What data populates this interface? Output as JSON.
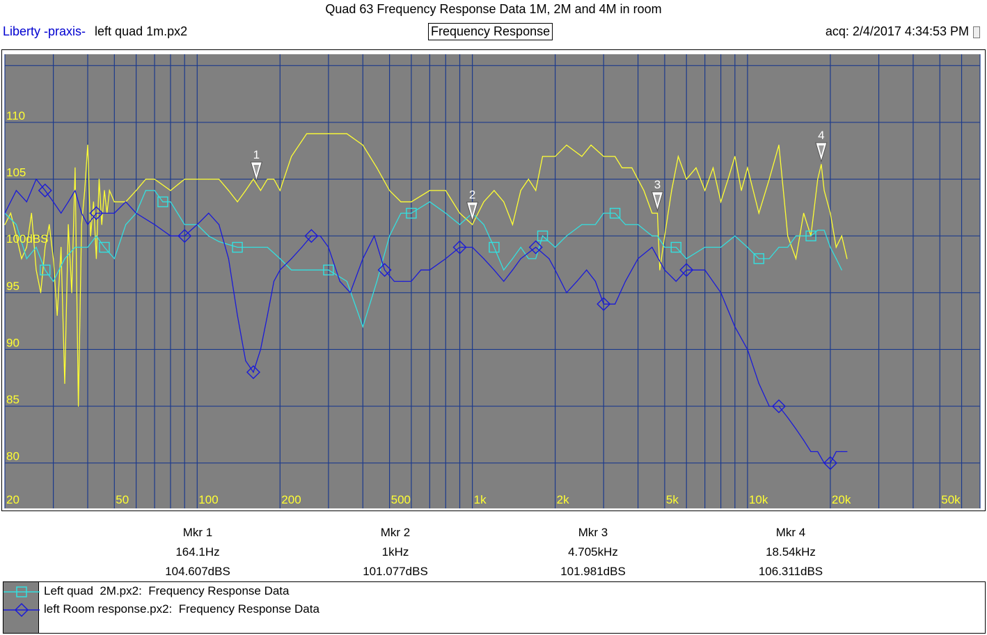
{
  "title": "Quad 63 Frequency Response Data 1M, 2M and 4M in room",
  "header": {
    "brand": "Liberty -praxis-",
    "file": "left quad  1m.px2",
    "mode": "Frequency Response",
    "acq": "acq: 2/4/2017 4:34:53 PM"
  },
  "colors": {
    "plot_bg": "#808080",
    "grid": "#1c3a8c",
    "series_1m": "#ffff33",
    "series_2m": "#33e0e0",
    "series_room": "#1a1ad8",
    "axis_text": "#ffff33"
  },
  "chart_data": {
    "type": "line",
    "title": "Quad 63 Frequency Response Data 1M, 2M and 4M in room",
    "xscale": "log",
    "xlim": [
      20,
      70000
    ],
    "ylim": [
      76,
      116
    ],
    "x_tick_labels": [
      {
        "value": 20,
        "label": "20"
      },
      {
        "value": 50,
        "label": "50"
      },
      {
        "value": 100,
        "label": "100"
      },
      {
        "value": 200,
        "label": "200"
      },
      {
        "value": 500,
        "label": "500"
      },
      {
        "value": 1000,
        "label": "1k"
      },
      {
        "value": 2000,
        "label": "2k"
      },
      {
        "value": 5000,
        "label": "5k"
      },
      {
        "value": 10000,
        "label": "10k"
      },
      {
        "value": 20000,
        "label": "20k"
      },
      {
        "value": 50000,
        "label": "50k"
      }
    ],
    "y_tick_labels": [
      {
        "value": 110,
        "label": "110"
      },
      {
        "value": 105,
        "label": "105"
      },
      {
        "value": 100,
        "label": "100dBS"
      },
      {
        "value": 95,
        "label": "95"
      },
      {
        "value": 90,
        "label": "90"
      },
      {
        "value": 85,
        "label": "85"
      },
      {
        "value": 80,
        "label": "80"
      }
    ],
    "grid": true,
    "series": [
      {
        "name": "left quad  1m.px2",
        "color": "#ffff33",
        "marker": "none",
        "points": [
          [
            20,
            101
          ],
          [
            21,
            102
          ],
          [
            22,
            100
          ],
          [
            23,
            98
          ],
          [
            24,
            99
          ],
          [
            25,
            102
          ],
          [
            26,
            97
          ],
          [
            27,
            95
          ],
          [
            28,
            99
          ],
          [
            29,
            101
          ],
          [
            30,
            98
          ],
          [
            31,
            93
          ],
          [
            32,
            99
          ],
          [
            33,
            87
          ],
          [
            34,
            101
          ],
          [
            35,
            95
          ],
          [
            36,
            106
          ],
          [
            37,
            85
          ],
          [
            38,
            101
          ],
          [
            39,
            104
          ],
          [
            40,
            108
          ],
          [
            41,
            100
          ],
          [
            42,
            103
          ],
          [
            43,
            98
          ],
          [
            44,
            105
          ],
          [
            45,
            101
          ],
          [
            46,
            104
          ],
          [
            47,
            102
          ],
          [
            48,
            104
          ],
          [
            50,
            103
          ],
          [
            55,
            103
          ],
          [
            60,
            104
          ],
          [
            65,
            105
          ],
          [
            70,
            105
          ],
          [
            80,
            104
          ],
          [
            90,
            105
          ],
          [
            100,
            105
          ],
          [
            110,
            105
          ],
          [
            120,
            105
          ],
          [
            130,
            104
          ],
          [
            140,
            103
          ],
          [
            150,
            104
          ],
          [
            160,
            105
          ],
          [
            170,
            104
          ],
          [
            180,
            105
          ],
          [
            190,
            105
          ],
          [
            200,
            104
          ],
          [
            220,
            107
          ],
          [
            250,
            109
          ],
          [
            300,
            109
          ],
          [
            350,
            109
          ],
          [
            400,
            108
          ],
          [
            450,
            106
          ],
          [
            500,
            104
          ],
          [
            550,
            103
          ],
          [
            600,
            103
          ],
          [
            700,
            104
          ],
          [
            800,
            104
          ],
          [
            900,
            102
          ],
          [
            1000,
            101
          ],
          [
            1100,
            103
          ],
          [
            1200,
            104
          ],
          [
            1300,
            103
          ],
          [
            1400,
            101
          ],
          [
            1500,
            104
          ],
          [
            1600,
            105
          ],
          [
            1700,
            104
          ],
          [
            1800,
            107
          ],
          [
            2000,
            107
          ],
          [
            2200,
            108
          ],
          [
            2500,
            107
          ],
          [
            2700,
            108
          ],
          [
            3000,
            107
          ],
          [
            3300,
            107
          ],
          [
            3500,
            106
          ],
          [
            3800,
            106
          ],
          [
            4200,
            104
          ],
          [
            4500,
            102
          ],
          [
            4705,
            102
          ],
          [
            4800,
            97
          ],
          [
            5000,
            100
          ],
          [
            5300,
            104
          ],
          [
            5600,
            107
          ],
          [
            6000,
            105
          ],
          [
            6500,
            106
          ],
          [
            7000,
            104
          ],
          [
            7500,
            106
          ],
          [
            8000,
            103
          ],
          [
            8500,
            105
          ],
          [
            9000,
            107
          ],
          [
            9500,
            104
          ],
          [
            10000,
            106
          ],
          [
            11000,
            102
          ],
          [
            12000,
            105
          ],
          [
            13000,
            108
          ],
          [
            13500,
            104
          ],
          [
            14000,
            100
          ],
          [
            15000,
            98
          ],
          [
            16000,
            102
          ],
          [
            17000,
            100
          ],
          [
            18000,
            105
          ],
          [
            18540,
            106.3
          ],
          [
            19000,
            104
          ],
          [
            20000,
            102
          ],
          [
            21000,
            99
          ],
          [
            22000,
            100
          ],
          [
            23000,
            98
          ]
        ]
      },
      {
        "name": "Left quad  2M.px2:  Frequency Response Data",
        "color": "#33e0e0",
        "marker": "square",
        "points": [
          [
            20,
            102
          ],
          [
            22,
            101
          ],
          [
            24,
            98
          ],
          [
            26,
            99
          ],
          [
            28,
            97
          ],
          [
            30,
            96
          ],
          [
            33,
            98
          ],
          [
            36,
            99
          ],
          [
            40,
            99
          ],
          [
            43,
            100
          ],
          [
            46,
            99
          ],
          [
            50,
            98
          ],
          [
            55,
            101
          ],
          [
            60,
            102
          ],
          [
            65,
            104
          ],
          [
            70,
            104
          ],
          [
            75,
            103
          ],
          [
            80,
            103
          ],
          [
            90,
            101
          ],
          [
            100,
            101
          ],
          [
            110,
            100
          ],
          [
            120,
            99.5
          ],
          [
            140,
            99
          ],
          [
            160,
            99
          ],
          [
            180,
            99
          ],
          [
            200,
            98
          ],
          [
            220,
            97
          ],
          [
            250,
            97
          ],
          [
            300,
            97
          ],
          [
            350,
            96
          ],
          [
            400,
            92
          ],
          [
            450,
            96
          ],
          [
            500,
            100
          ],
          [
            550,
            102
          ],
          [
            600,
            102
          ],
          [
            700,
            103
          ],
          [
            800,
            102
          ],
          [
            900,
            101
          ],
          [
            1000,
            102
          ],
          [
            1100,
            101
          ],
          [
            1200,
            99
          ],
          [
            1300,
            97
          ],
          [
            1400,
            98
          ],
          [
            1500,
            99
          ],
          [
            1600,
            98
          ],
          [
            1700,
            98
          ],
          [
            1800,
            100
          ],
          [
            2000,
            99
          ],
          [
            2200,
            100
          ],
          [
            2500,
            101
          ],
          [
            2800,
            101
          ],
          [
            3000,
            102
          ],
          [
            3300,
            102
          ],
          [
            3600,
            101
          ],
          [
            4000,
            101
          ],
          [
            4500,
            100
          ],
          [
            4705,
            100
          ],
          [
            5000,
            99
          ],
          [
            5500,
            99
          ],
          [
            6000,
            98
          ],
          [
            7000,
            99
          ],
          [
            8000,
            99
          ],
          [
            9000,
            100
          ],
          [
            10000,
            99
          ],
          [
            11000,
            98
          ],
          [
            12000,
            98
          ],
          [
            13000,
            99
          ],
          [
            14000,
            99
          ],
          [
            15000,
            100
          ],
          [
            16000,
            100
          ],
          [
            17000,
            100
          ],
          [
            18000,
            100.5
          ],
          [
            19000,
            100.5
          ],
          [
            20000,
            99
          ],
          [
            21000,
            98
          ],
          [
            22000,
            97
          ]
        ]
      },
      {
        "name": "left Room response.px2:  Frequency Response Data",
        "color": "#1a1ad8",
        "marker": "diamond",
        "points": [
          [
            20,
            102
          ],
          [
            22,
            104
          ],
          [
            24,
            103
          ],
          [
            26,
            105
          ],
          [
            28,
            104
          ],
          [
            30,
            103
          ],
          [
            32,
            102
          ],
          [
            34,
            103
          ],
          [
            36,
            104
          ],
          [
            38,
            102
          ],
          [
            40,
            101
          ],
          [
            43,
            102
          ],
          [
            46,
            102
          ],
          [
            50,
            102
          ],
          [
            55,
            103
          ],
          [
            60,
            102
          ],
          [
            70,
            101
          ],
          [
            80,
            100
          ],
          [
            90,
            100
          ],
          [
            100,
            101
          ],
          [
            110,
            102
          ],
          [
            120,
            101
          ],
          [
            130,
            98
          ],
          [
            140,
            93
          ],
          [
            150,
            89
          ],
          [
            160,
            88
          ],
          [
            170,
            90
          ],
          [
            180,
            93
          ],
          [
            190,
            96
          ],
          [
            200,
            97
          ],
          [
            220,
            98
          ],
          [
            240,
            99
          ],
          [
            260,
            100
          ],
          [
            280,
            100
          ],
          [
            300,
            99
          ],
          [
            330,
            96
          ],
          [
            360,
            95
          ],
          [
            400,
            98
          ],
          [
            440,
            100
          ],
          [
            480,
            97
          ],
          [
            520,
            96
          ],
          [
            560,
            96
          ],
          [
            600,
            96
          ],
          [
            650,
            97
          ],
          [
            700,
            97
          ],
          [
            800,
            98
          ],
          [
            900,
            99
          ],
          [
            1000,
            99
          ],
          [
            1100,
            98
          ],
          [
            1200,
            97
          ],
          [
            1300,
            96
          ],
          [
            1400,
            97
          ],
          [
            1500,
            98
          ],
          [
            1700,
            99
          ],
          [
            1900,
            98
          ],
          [
            2000,
            97
          ],
          [
            2200,
            95
          ],
          [
            2400,
            96
          ],
          [
            2600,
            97
          ],
          [
            2800,
            96
          ],
          [
            3000,
            94
          ],
          [
            3300,
            94
          ],
          [
            3600,
            96
          ],
          [
            4000,
            98
          ],
          [
            4500,
            99
          ],
          [
            5000,
            97
          ],
          [
            5500,
            96
          ],
          [
            6000,
            97
          ],
          [
            7000,
            97
          ],
          [
            8000,
            95
          ],
          [
            9000,
            92
          ],
          [
            10000,
            90
          ],
          [
            11000,
            87
          ],
          [
            12000,
            85
          ],
          [
            13000,
            85
          ],
          [
            14000,
            84
          ],
          [
            15000,
            83
          ],
          [
            16000,
            82
          ],
          [
            17000,
            81
          ],
          [
            18000,
            81
          ],
          [
            19000,
            80
          ],
          [
            20000,
            80
          ],
          [
            21000,
            81
          ],
          [
            22000,
            81
          ],
          [
            23000,
            81
          ]
        ]
      }
    ],
    "markers": [
      {
        "label": "1",
        "series": 0,
        "x": 164.1,
        "y": 104.607
      },
      {
        "label": "2",
        "series": 0,
        "x": 1000,
        "y": 101.077
      },
      {
        "label": "3",
        "series": 0,
        "x": 4705,
        "y": 101.981
      },
      {
        "label": "4",
        "series": 0,
        "x": 18540,
        "y": 106.311
      }
    ]
  },
  "marker_readouts": [
    {
      "name": "Mkr 1",
      "freq": "164.1Hz",
      "level": "104.607dBS"
    },
    {
      "name": "Mkr 2",
      "freq": "1kHz",
      "level": "101.077dBS"
    },
    {
      "name": "Mkr 3",
      "freq": "4.705kHz",
      "level": "101.981dBS"
    },
    {
      "name": "Mkr 4",
      "freq": "18.54kHz",
      "level": "106.311dBS"
    }
  ],
  "legend": [
    {
      "text": "Left quad  2M.px2:  Frequency Response Data",
      "color": "#33e0e0",
      "marker": "square"
    },
    {
      "text": "left Room response.px2:  Frequency Response Data",
      "color": "#1a1ad8",
      "marker": "diamond"
    }
  ]
}
